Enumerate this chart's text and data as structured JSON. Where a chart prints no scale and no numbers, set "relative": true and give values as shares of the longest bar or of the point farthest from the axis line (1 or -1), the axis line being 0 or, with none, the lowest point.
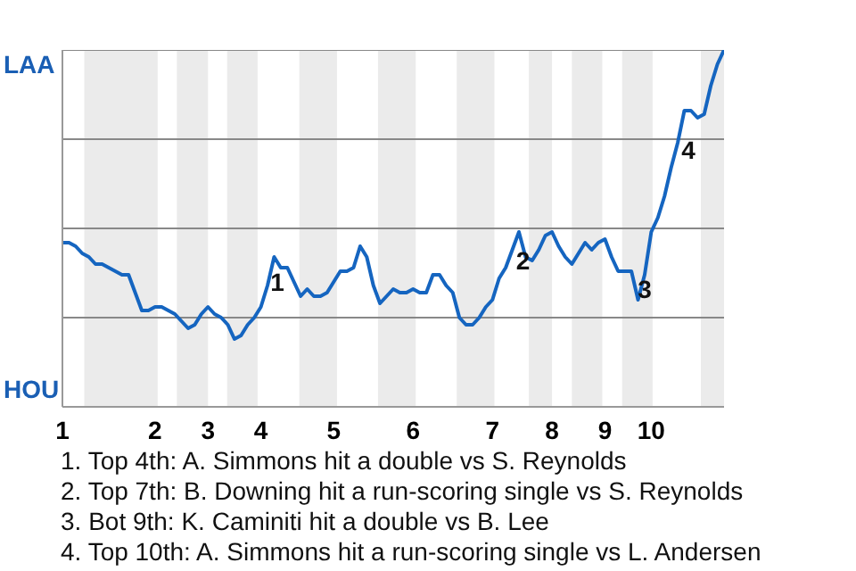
{
  "chart_data": {
    "type": "line",
    "relative": true,
    "categories": [
      "1",
      null,
      null,
      null,
      null,
      null,
      null,
      null,
      null,
      null,
      null,
      null,
      null,
      null,
      "2",
      null,
      null,
      null,
      null,
      null,
      null,
      null,
      "3",
      null,
      null,
      null,
      null,
      null,
      null,
      null,
      "4",
      null,
      null,
      null,
      null,
      null,
      null,
      null,
      null,
      null,
      null,
      "5",
      null,
      null,
      null,
      null,
      null,
      null,
      null,
      null,
      null,
      null,
      null,
      "6",
      null,
      null,
      null,
      null,
      null,
      null,
      null,
      null,
      null,
      null,
      null,
      "7",
      null,
      null,
      null,
      null,
      null,
      null,
      null,
      null,
      "8",
      null,
      null,
      null,
      null,
      null,
      null,
      null,
      "9",
      null,
      null,
      null,
      null,
      null,
      null,
      "10",
      null,
      null,
      null,
      null,
      null,
      null,
      null,
      null,
      null,
      null,
      null
    ],
    "series": [
      {
        "color": "#1565c0",
        "values": [
          0.46,
          0.46,
          0.45,
          0.43,
          0.42,
          0.4,
          0.4,
          0.39,
          0.38,
          0.37,
          0.37,
          0.32,
          0.27,
          0.27,
          0.28,
          0.28,
          0.27,
          0.26,
          0.24,
          0.22,
          0.23,
          0.26,
          0.28,
          0.26,
          0.25,
          0.23,
          0.19,
          0.2,
          0.23,
          0.25,
          0.28,
          0.34,
          0.42,
          0.39,
          0.39,
          0.35,
          0.31,
          0.33,
          0.31,
          0.31,
          0.32,
          0.35,
          0.38,
          0.38,
          0.39,
          0.45,
          0.42,
          0.34,
          0.29,
          0.31,
          0.33,
          0.32,
          0.32,
          0.33,
          0.32,
          0.32,
          0.37,
          0.37,
          0.34,
          0.32,
          0.25,
          0.23,
          0.23,
          0.25,
          0.28,
          0.3,
          0.36,
          0.39,
          0.44,
          0.49,
          0.42,
          0.41,
          0.44,
          0.48,
          0.49,
          0.45,
          0.42,
          0.4,
          0.43,
          0.46,
          0.44,
          0.46,
          0.47,
          0.42,
          0.38,
          0.38,
          0.38,
          0.3,
          0.37,
          0.49,
          0.53,
          0.59,
          0.67,
          0.74,
          0.83,
          0.83,
          0.81,
          0.82,
          0.9,
          0.96,
          1
        ]
      }
    ],
    "legend": false,
    "marker": "none",
    "line_style": "solid",
    "ref_lines": [
      {
        "axis": "y",
        "value": 0.25,
        "color": "#888888"
      },
      {
        "axis": "y",
        "value": 0.5,
        "color": "#888888"
      },
      {
        "axis": "y",
        "value": 0.75,
        "color": "#888888"
      },
      {
        "axis": "y",
        "value": 1,
        "color": "#888888"
      }
    ],
    "annotations": [
      "LAA",
      "HOU",
      "1",
      "2",
      "3",
      "4",
      "1. Top 4th: A. Simmons hit a double vs S. Reynolds",
      "2. Top 7th: B. Downing hit a run-scoring single vs S. Reynolds",
      "3. Bot 9th: K. Caminiti hit a double vs B. Lee",
      "4. Top 10th: A. Simmons hit a run-scoring single vs L. Andersen"
    ]
  }
}
